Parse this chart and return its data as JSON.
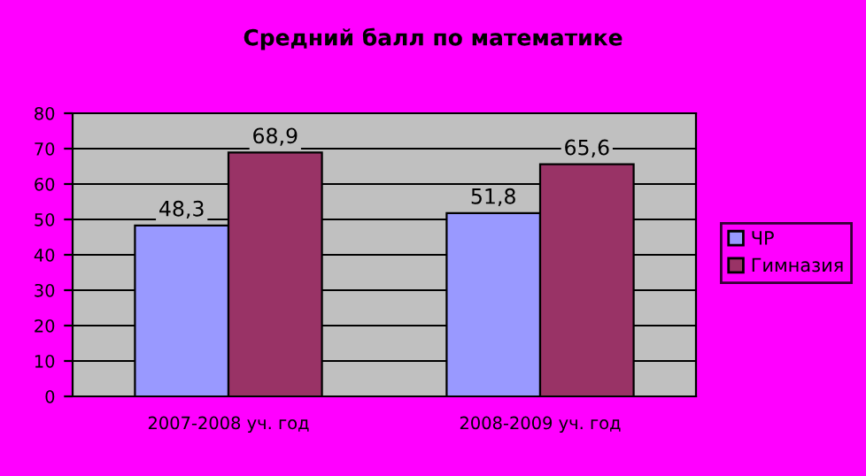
{
  "chart_data": {
    "type": "bar",
    "title": "Средний балл по математике",
    "categories": [
      "2007-2008 уч. год",
      "2008-2009 уч. год"
    ],
    "series": [
      {
        "name": "ЧР",
        "color": "#9999ff",
        "values": [
          48.3,
          51.8
        ],
        "value_labels": [
          "48,3",
          "51,8"
        ]
      },
      {
        "name": "Гимназия",
        "color": "#993366",
        "values": [
          68.9,
          65.6
        ],
        "value_labels": [
          "68,9",
          "65,6"
        ]
      }
    ],
    "ylim": [
      0,
      80
    ],
    "yticks": [
      0,
      10,
      20,
      30,
      40,
      50,
      60,
      70,
      80
    ],
    "grid": "y",
    "legend": "right"
  }
}
